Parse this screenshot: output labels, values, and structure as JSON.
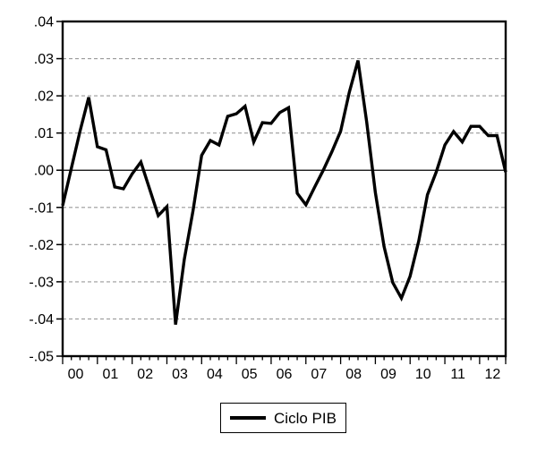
{
  "chart_data": {
    "type": "line",
    "title": "",
    "legend": "Ciclo PIB",
    "legend_position": "bottom-center",
    "grid": "horizontal-dashed",
    "zero_line": true,
    "ylim": [
      -0.05,
      0.04
    ],
    "y_tick_step": 0.01,
    "y_tick_labels": [
      ".04",
      ".03",
      ".02",
      ".01",
      ".00",
      "-.01",
      "-.02",
      "-.03",
      "-.04",
      "-.05"
    ],
    "x_year_labels": [
      "00",
      "01",
      "02",
      "03",
      "04",
      "05",
      "06",
      "07",
      "08",
      "09",
      "10",
      "11",
      "12"
    ],
    "quarters_per_year": 4,
    "categories": [
      "2000Q1",
      "2000Q2",
      "2000Q3",
      "2000Q4",
      "2001Q1",
      "2001Q2",
      "2001Q3",
      "2001Q4",
      "2002Q1",
      "2002Q2",
      "2002Q3",
      "2002Q4",
      "2003Q1",
      "2003Q2",
      "2003Q3",
      "2003Q4",
      "2004Q1",
      "2004Q2",
      "2004Q3",
      "2004Q4",
      "2005Q1",
      "2005Q2",
      "2005Q3",
      "2005Q4",
      "2006Q1",
      "2006Q2",
      "2006Q3",
      "2006Q4",
      "2007Q1",
      "2007Q2",
      "2007Q3",
      "2007Q4",
      "2008Q1",
      "2008Q2",
      "2008Q3",
      "2008Q4",
      "2009Q1",
      "2009Q2",
      "2009Q3",
      "2009Q4",
      "2010Q1",
      "2010Q2",
      "2010Q3",
      "2010Q4",
      "2011Q1",
      "2011Q2",
      "2011Q3",
      "2011Q4",
      "2012Q1",
      "2012Q2",
      "2012Q3",
      "2012Q4"
    ],
    "series": [
      {
        "name": "Ciclo PIB",
        "color": "#000000",
        "values": [
          -0.0095,
          0.0005,
          0.0105,
          0.0196,
          0.0063,
          0.0055,
          -0.0045,
          -0.005,
          -0.001,
          0.0022,
          -0.005,
          -0.0122,
          -0.0098,
          -0.0415,
          -0.024,
          -0.011,
          0.004,
          0.008,
          0.0068,
          0.0145,
          0.0152,
          0.0172,
          0.0076,
          0.0128,
          0.0126,
          0.0155,
          0.0168,
          -0.0062,
          -0.0093,
          -0.0046,
          0.0,
          0.005,
          0.0105,
          0.021,
          0.0295,
          0.013,
          -0.006,
          -0.0205,
          -0.0302,
          -0.0344,
          -0.0285,
          -0.019,
          -0.0066,
          -0.0005,
          0.0068,
          0.0104,
          0.0076,
          0.0118,
          0.0118,
          0.0093,
          0.0093,
          -0.0005
        ]
      }
    ]
  },
  "colors": {
    "background": "#ffffff",
    "frame": "#000000",
    "grid": "#9a9a9a",
    "zero_line": "#000000",
    "line": "#000000",
    "text": "#000000"
  }
}
